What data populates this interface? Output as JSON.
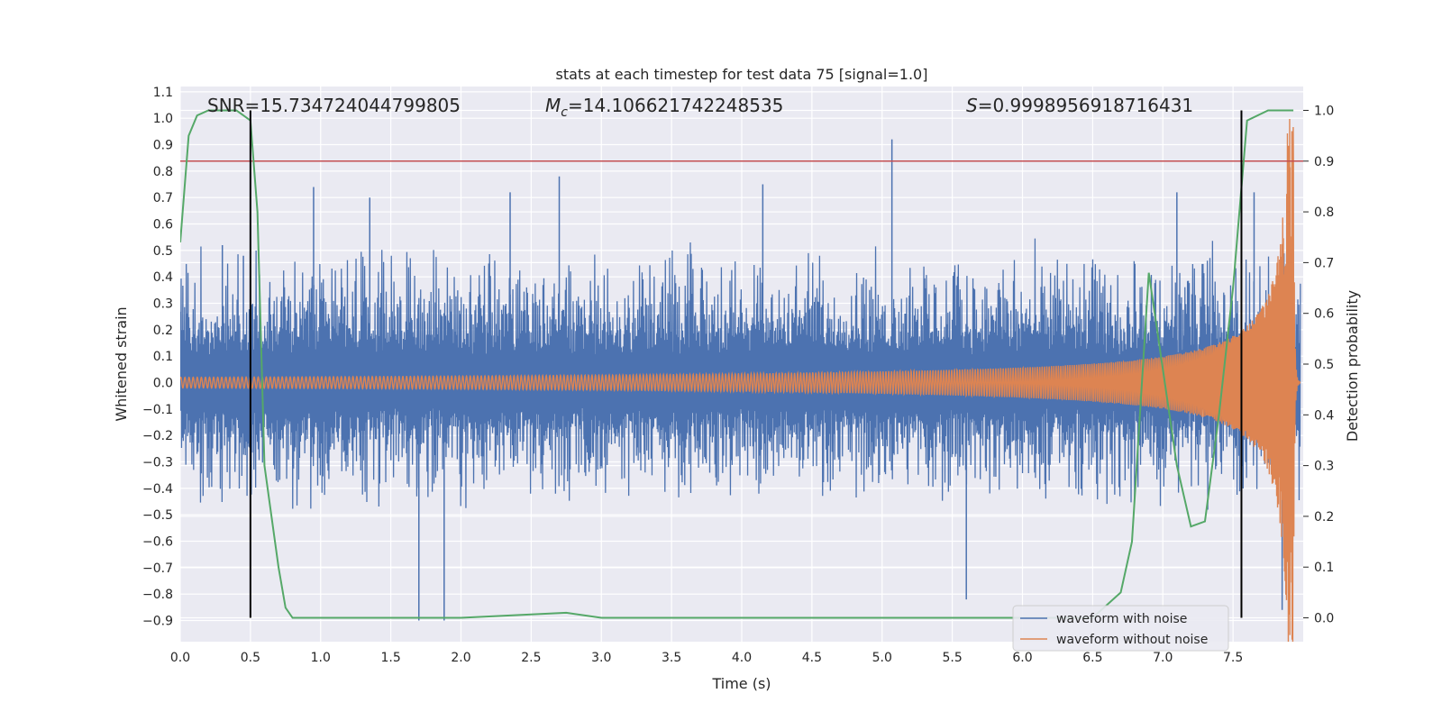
{
  "chart_data": {
    "type": "line",
    "title": "stats at each timestep for test data 75 [signal=1.0]",
    "xlabel": "Time (s)",
    "ylabel": "Whitened strain",
    "y2label": "Detection probability",
    "xlim": [
      0.0,
      8.0
    ],
    "ylim": [
      -0.98,
      1.12
    ],
    "y2lim": [
      -0.047,
      1.047
    ],
    "x_ticks": [
      "0.0",
      "0.5",
      "1.0",
      "1.5",
      "2.0",
      "2.5",
      "3.0",
      "3.5",
      "4.0",
      "4.5",
      "5.0",
      "5.5",
      "6.0",
      "6.5",
      "7.0",
      "7.5"
    ],
    "y_ticks": [
      "−0.9",
      "−0.8",
      "−0.7",
      "−0.6",
      "−0.5",
      "−0.4",
      "−0.3",
      "−0.2",
      "−0.1",
      "0.0",
      "0.1",
      "0.2",
      "0.3",
      "0.4",
      "0.5",
      "0.6",
      "0.7",
      "0.8",
      "0.9",
      "1.0",
      "1.1"
    ],
    "y2_ticks": [
      "0.0",
      "0.1",
      "0.2",
      "0.3",
      "0.4",
      "0.5",
      "0.6",
      "0.7",
      "0.8",
      "0.9",
      "1.0"
    ],
    "grid": true,
    "legend_position": "lower-right",
    "annotations": {
      "snr": "SNR=15.734724044799805",
      "mc_symbol": "M",
      "mc_sub": "c",
      "mc_value": "=14.106621742248535",
      "s_symbol": "S",
      "s_value": "=0.9998956918716431"
    },
    "threshold_y2": 0.9,
    "vlines_x": [
      0.5,
      7.56
    ],
    "series": [
      {
        "name": "waveform with noise",
        "color": "#4c72b0",
        "envelope_min": -0.5,
        "envelope_max": 0.55,
        "spikes": [
          [
            0.3,
            0.52
          ],
          [
            0.45,
            0.48
          ],
          [
            0.95,
            0.74
          ],
          [
            1.35,
            0.7
          ],
          [
            1.7,
            -0.9
          ],
          [
            1.88,
            -0.9
          ],
          [
            2.35,
            0.72
          ],
          [
            2.7,
            0.78
          ],
          [
            4.15,
            0.75
          ],
          [
            5.07,
            0.92
          ],
          [
            5.6,
            -0.82
          ],
          [
            7.1,
            0.72
          ],
          [
            7.65,
            0.72
          ],
          [
            7.85,
            -0.86
          ]
        ]
      },
      {
        "name": "waveform without noise",
        "color": "#dd8452",
        "chirp_start_x": 0.0,
        "chirp_peak_x": 7.93,
        "amplitude_start": 0.02,
        "amplitude_peak": 1.0
      },
      {
        "name": "",
        "color": "#55a868",
        "axis": "y2",
        "x": [
          0.0,
          0.06,
          0.12,
          0.2,
          0.3,
          0.4,
          0.45,
          0.5,
          0.55,
          0.6,
          0.7,
          0.75,
          0.8,
          1.0,
          2.0,
          2.75,
          3.0,
          4.0,
          5.0,
          6.0,
          6.5,
          6.7,
          6.78,
          6.9,
          7.1,
          7.2,
          7.3,
          7.4,
          7.5,
          7.6,
          7.75,
          7.85,
          7.93
        ],
        "y": [
          0.74,
          0.95,
          0.99,
          1.0,
          1.0,
          1.0,
          0.99,
          0.98,
          0.8,
          0.3,
          0.1,
          0.02,
          0.0,
          0.0,
          0.0,
          0.01,
          0.0,
          0.0,
          0.0,
          0.0,
          0.0,
          0.05,
          0.15,
          0.68,
          0.3,
          0.18,
          0.19,
          0.4,
          0.65,
          0.98,
          1.0,
          1.0,
          1.0
        ]
      },
      {
        "name": "",
        "color": "#c44e52",
        "axis": "y2"
      }
    ]
  }
}
